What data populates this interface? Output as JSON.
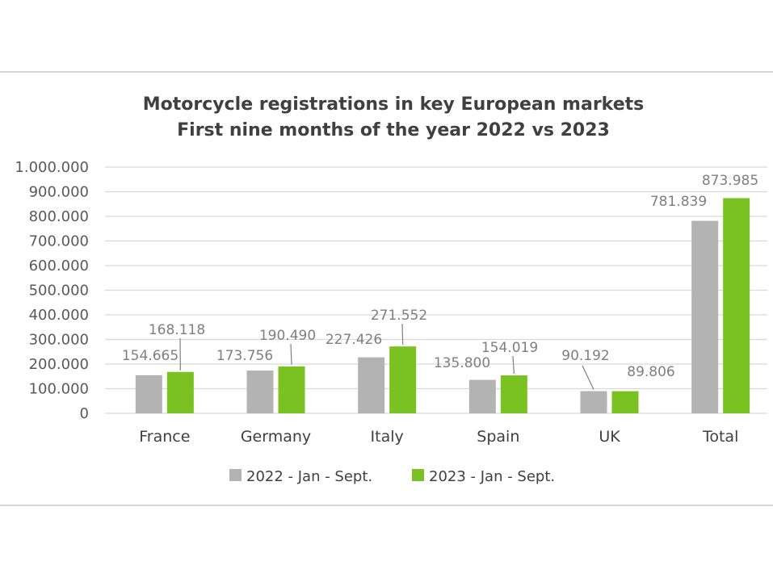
{
  "chart_data": {
    "type": "bar",
    "title": [
      "Motorcycle registrations in key European markets",
      "First nine months of the year 2022 vs 2023"
    ],
    "categories": [
      "France",
      "Germany",
      "Italy",
      "Spain",
      "UK",
      "Total"
    ],
    "series": [
      {
        "name": "2022 - Jan - Sept.",
        "values": [
          154665,
          173756,
          227426,
          135800,
          90192,
          781839
        ],
        "labels": [
          "154.665",
          "173.756",
          "227.426",
          "135.800",
          "90.192",
          "781.839"
        ]
      },
      {
        "name": "2023 - Jan - Sept.",
        "values": [
          168118,
          190490,
          271552,
          154019,
          89806,
          873985
        ],
        "labels": [
          "168.118",
          "190.490",
          "271.552",
          "154.019",
          "89.806",
          "873.985"
        ]
      }
    ],
    "ylim": [
      0,
      1000000
    ],
    "yticks": [
      0,
      100000,
      200000,
      300000,
      400000,
      500000,
      600000,
      700000,
      800000,
      900000,
      1000000
    ],
    "ytick_labels": [
      "0",
      "100.000",
      "200.000",
      "300.000",
      "400.000",
      "500.000",
      "600.000",
      "700.000",
      "800.000",
      "900.000",
      "1.000.000"
    ],
    "grid": true,
    "legend_position": "bottom",
    "colors": {
      "series_2022": "#b3b3b3",
      "series_2023": "#79c222",
      "grid": "#d9d9d9",
      "label": "#7f7f7f"
    }
  }
}
